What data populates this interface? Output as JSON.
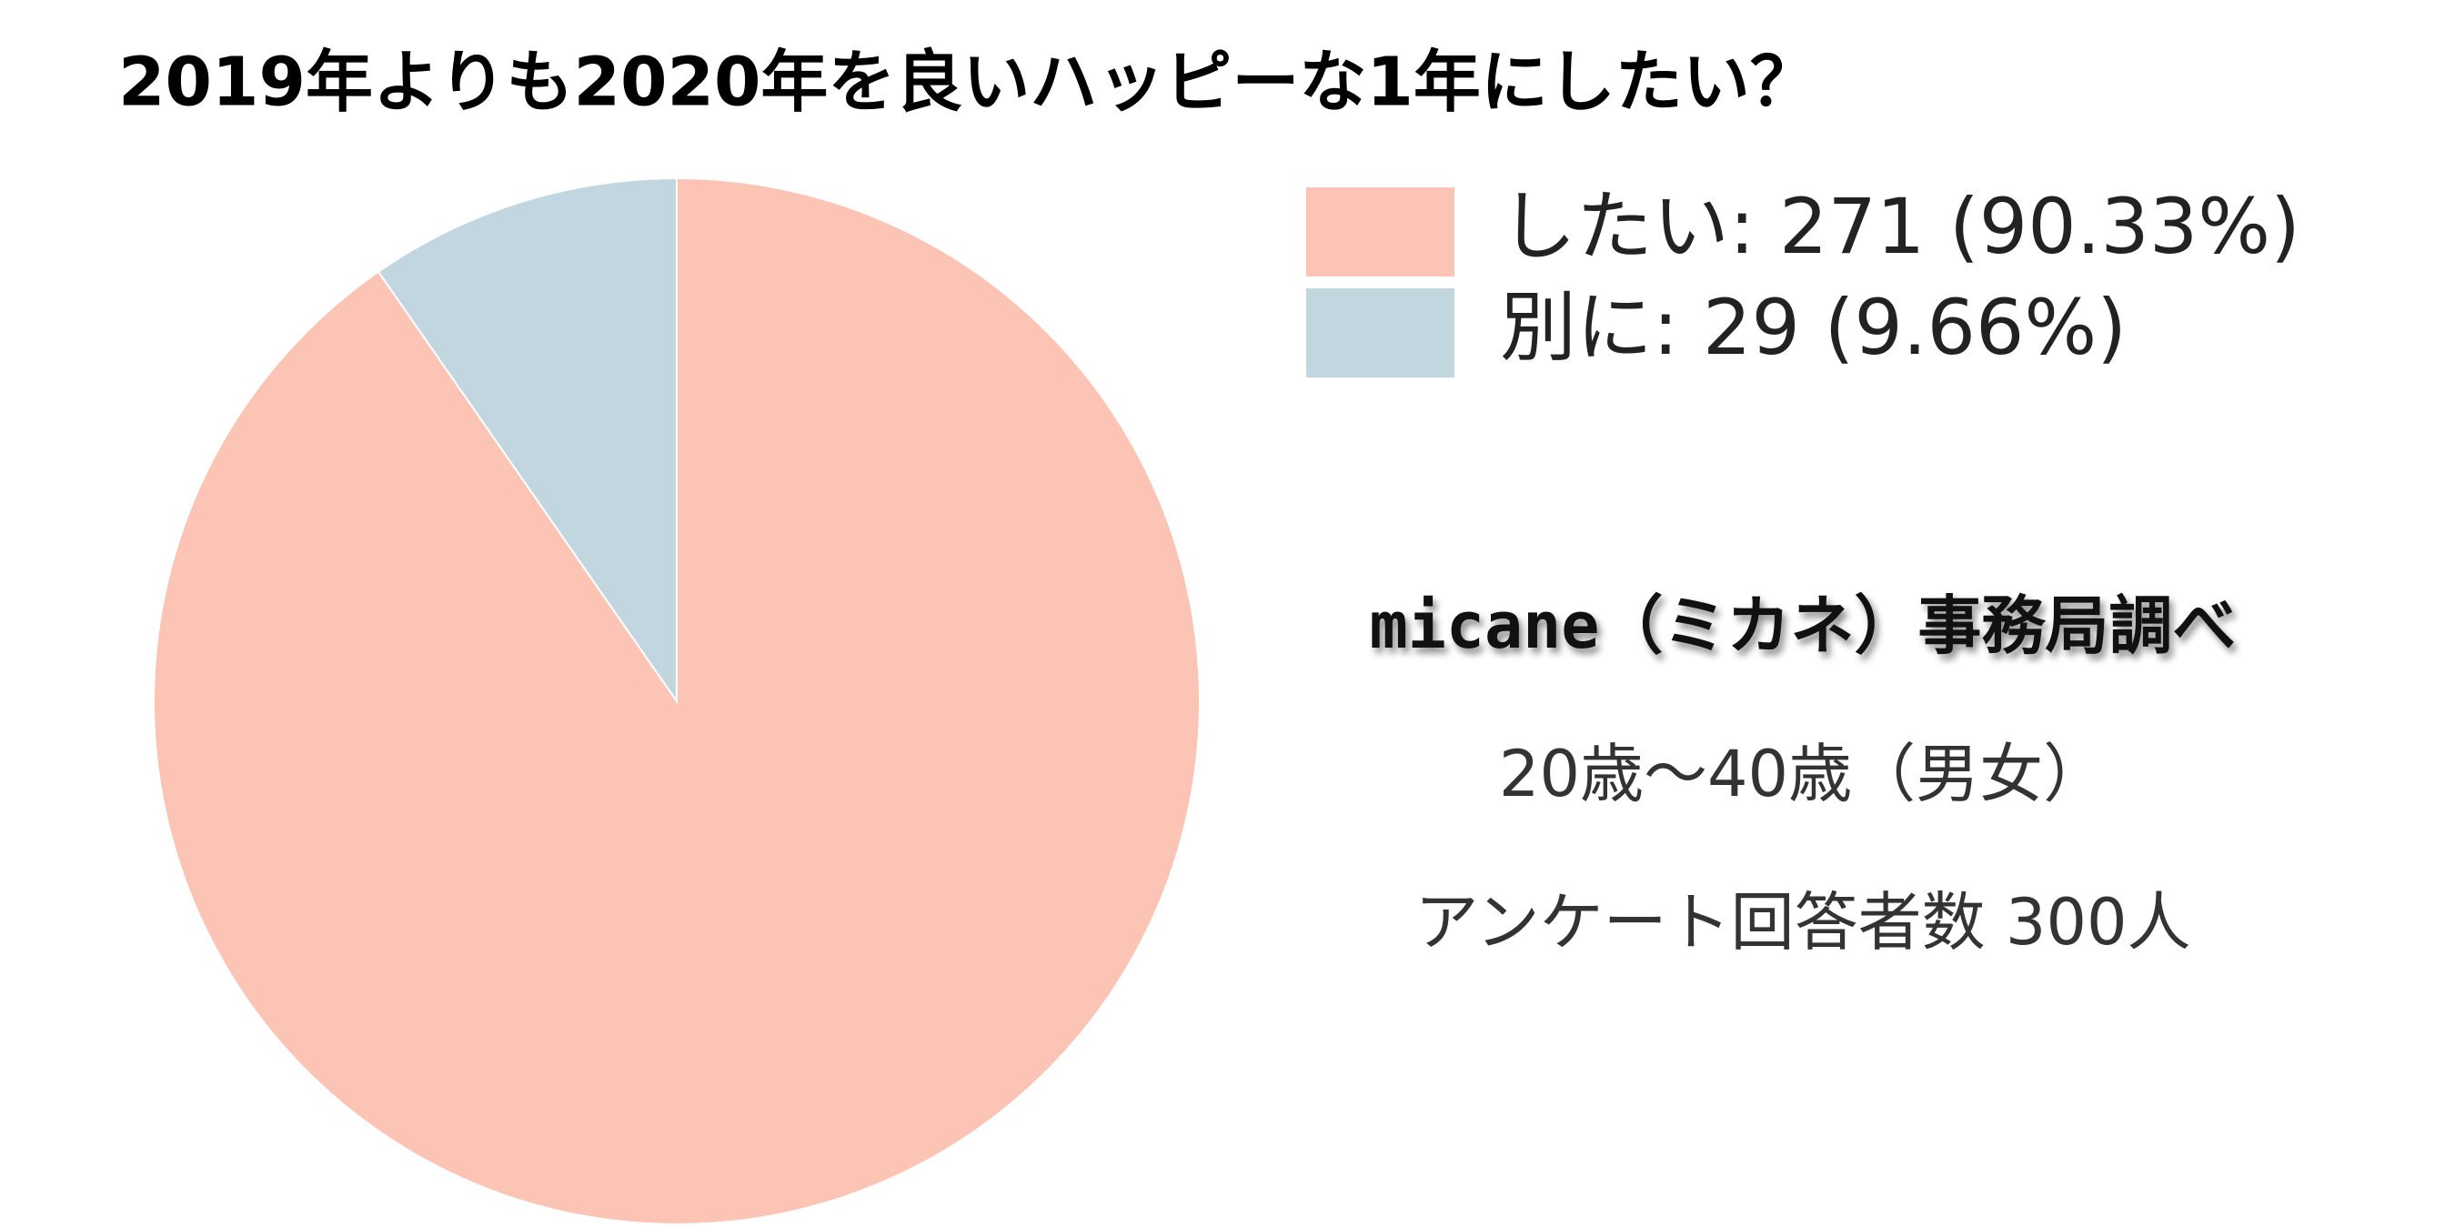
{
  "chart_data": {
    "type": "pie",
    "title": "2019年よりも2020年を良いハッピーな1年にしたい？",
    "categories": [
      "したい: 271 (90.33%)",
      "別に: 29 (9.66%)"
    ],
    "values": [
      90.33,
      9.66
    ],
    "colors": [
      "#fbc4b5",
      "#c2d6e0"
    ],
    "annotations": [
      "micane（ミカネ）事務局調べ",
      "20歳〜40歳（男女）",
      "アンケート回答者数 300人"
    ]
  }
}
